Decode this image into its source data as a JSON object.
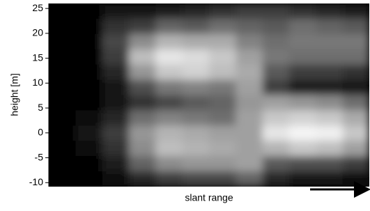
{
  "chart_data": {
    "type": "heatmap",
    "ylabel": "height [m]",
    "xlabel": "slant range",
    "ylim": [
      -10.8,
      26
    ],
    "yticks": [
      -10,
      -5,
      0,
      5,
      10,
      15,
      20,
      25
    ],
    "z": [
      [
        0,
        0,
        20,
        20,
        30,
        40,
        50,
        60,
        60,
        50,
        40,
        30
      ],
      [
        0,
        0,
        50,
        60,
        100,
        90,
        110,
        100,
        90,
        110,
        100,
        90
      ],
      [
        0,
        0,
        70,
        140,
        180,
        170,
        170,
        130,
        110,
        120,
        120,
        120
      ],
      [
        0,
        0,
        60,
        190,
        230,
        220,
        200,
        160,
        120,
        110,
        110,
        110
      ],
      [
        0,
        0,
        40,
        150,
        200,
        210,
        190,
        170,
        90,
        60,
        60,
        50
      ],
      [
        0,
        0,
        20,
        80,
        120,
        130,
        120,
        160,
        60,
        30,
        30,
        20
      ],
      [
        0,
        0,
        20,
        50,
        70,
        90,
        100,
        150,
        160,
        150,
        140,
        110
      ],
      [
        0,
        10,
        40,
        110,
        130,
        120,
        110,
        160,
        200,
        210,
        200,
        170
      ],
      [
        0,
        20,
        60,
        150,
        180,
        170,
        160,
        160,
        230,
        245,
        240,
        200
      ],
      [
        0,
        10,
        50,
        140,
        190,
        180,
        170,
        160,
        180,
        200,
        190,
        160
      ],
      [
        0,
        0,
        30,
        100,
        140,
        150,
        150,
        160,
        90,
        80,
        80,
        60
      ],
      [
        0,
        0,
        10,
        40,
        60,
        70,
        70,
        100,
        40,
        20,
        20,
        10
      ]
    ]
  }
}
